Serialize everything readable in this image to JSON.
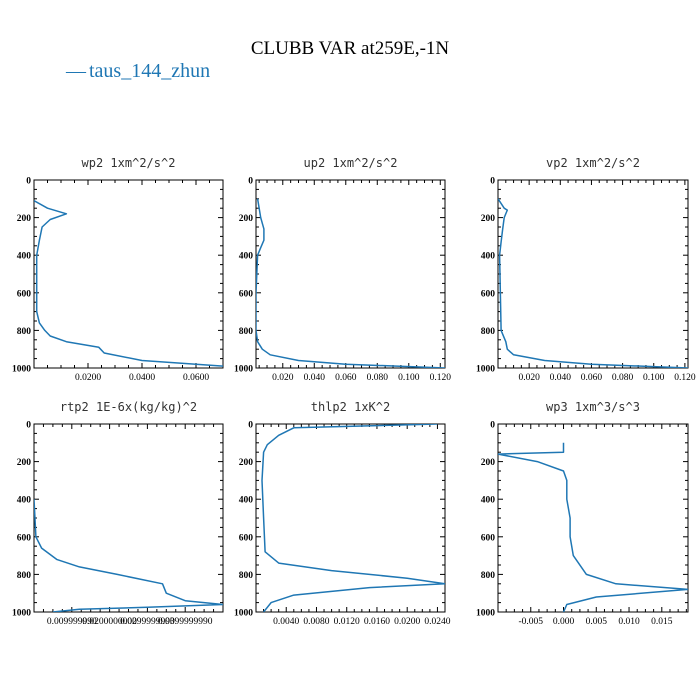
{
  "title": "CLUBB VAR at259E,-1N",
  "legend": {
    "label": "taus_144_zhun",
    "color": "#1f77b4",
    "marker": "—"
  },
  "chart_data": [
    {
      "type": "line",
      "title": "wp2  1xm^2/s^2",
      "xlim": [
        0,
        0.07
      ],
      "ylim": [
        1000,
        0
      ],
      "yticks": [
        0,
        200,
        400,
        600,
        800,
        1000
      ],
      "xticks": [
        0.02,
        0.04,
        0.06
      ],
      "xtick_labels": [
        "0.0200",
        "0.0400",
        "0.0600"
      ],
      "series": [
        {
          "x": [
            0.0,
            0.005,
            0.012,
            0.006,
            0.003,
            0.002,
            0.001,
            0.001,
            0.001,
            0.002,
            0.004,
            0.006,
            0.012,
            0.024,
            0.026,
            0.04,
            0.07
          ],
          "y": [
            110,
            150,
            180,
            210,
            250,
            320,
            400,
            600,
            700,
            760,
            800,
            830,
            860,
            890,
            920,
            960,
            990
          ]
        }
      ]
    },
    {
      "type": "line",
      "title": "up2  1xm^2/s^2",
      "xlim": [
        0.003,
        0.123
      ],
      "ylim": [
        1000,
        0
      ],
      "yticks": [
        0,
        200,
        400,
        600,
        800,
        1000
      ],
      "xticks": [
        0.02,
        0.04,
        0.06,
        0.08,
        0.1,
        0.12
      ],
      "xtick_labels": [
        "0.020",
        "0.040",
        "0.060",
        "0.080",
        "0.100",
        "0.120"
      ],
      "series": [
        {
          "x": [
            0.004,
            0.006,
            0.008,
            0.008,
            0.006,
            0.004,
            0.003,
            0.003,
            0.004,
            0.007,
            0.012,
            0.03,
            0.06,
            0.123
          ],
          "y": [
            100,
            200,
            260,
            320,
            360,
            400,
            600,
            800,
            860,
            900,
            930,
            960,
            980,
            1000
          ]
        }
      ]
    },
    {
      "type": "line",
      "title": "vp2  1xm^2/s^2",
      "xlim": [
        0.0,
        0.122
      ],
      "ylim": [
        1000,
        0
      ],
      "yticks": [
        0,
        200,
        400,
        600,
        800,
        1000
      ],
      "xticks": [
        0.02,
        0.04,
        0.06,
        0.08,
        0.1,
        0.12
      ],
      "xtick_labels": [
        "0.020",
        "0.040",
        "0.060",
        "0.080",
        "0.100",
        "0.120"
      ],
      "series": [
        {
          "x": [
            0.0,
            0.004,
            0.006,
            0.004,
            0.003,
            0.002,
            0.001,
            0.002,
            0.005,
            0.006,
            0.01,
            0.03,
            0.06,
            0.122
          ],
          "y": [
            100,
            150,
            160,
            200,
            260,
            330,
            400,
            800,
            860,
            900,
            930,
            960,
            980,
            1000
          ]
        }
      ]
    },
    {
      "type": "line",
      "title": "rtp2  1E-6x(kg/kg)^2",
      "xlim": [
        0.0,
        0.05
      ],
      "ylim": [
        1000,
        0
      ],
      "yticks": [
        0,
        200,
        400,
        600,
        800,
        1000
      ],
      "xticks": [
        0.01,
        0.02,
        0.03,
        0.04
      ],
      "xtick_labels": [
        "0.009999990",
        "0.0200000000",
        "0.0299999990",
        "0.0399999990"
      ],
      "series": [
        {
          "x": [
            0.0,
            0.0005,
            0.002,
            0.006,
            0.012,
            0.022,
            0.034,
            0.035,
            0.04,
            0.05,
            0.03,
            0.012,
            0.005
          ],
          "y": [
            400,
            600,
            660,
            720,
            760,
            800,
            850,
            900,
            940,
            960,
            975,
            985,
            1000
          ]
        }
      ]
    },
    {
      "type": "line",
      "title": "thlp2  1xK^2",
      "xlim": [
        0.0,
        0.025
      ],
      "ylim": [
        1000,
        0
      ],
      "yticks": [
        0,
        200,
        400,
        600,
        800,
        1000
      ],
      "xticks": [
        0.004,
        0.008,
        0.012,
        0.016,
        0.02,
        0.024
      ],
      "xtick_labels": [
        "0.0040",
        "0.0080",
        "0.0120",
        "0.0160",
        "0.0200",
        "0.0240"
      ],
      "series": [
        {
          "x": [
            0.024,
            0.005,
            0.003,
            0.0015,
            0.001,
            0.0008,
            0.001,
            0.0012,
            0.003,
            0.01,
            0.02,
            0.025,
            0.015,
            0.005,
            0.002,
            0.001
          ],
          "y": [
            0,
            20,
            60,
            110,
            150,
            300,
            500,
            680,
            740,
            780,
            820,
            850,
            870,
            910,
            950,
            1000
          ]
        }
      ]
    },
    {
      "type": "line",
      "title": "wp3  1xm^3/s^3",
      "xlim": [
        -0.01,
        0.019
      ],
      "ylim": [
        1000,
        0
      ],
      "yticks": [
        0,
        200,
        400,
        600,
        800,
        1000
      ],
      "xticks": [
        -0.005,
        0.0,
        0.005,
        0.01,
        0.015
      ],
      "xtick_labels": [
        "-0.005",
        "0.000",
        "0.005",
        "0.010",
        "0.015"
      ],
      "series": [
        {
          "x": [
            0.0,
            0.0,
            -0.01,
            -0.004,
            0.0,
            0.0005,
            0.0005,
            0.001,
            0.001,
            0.0015,
            0.0035,
            0.008,
            0.019,
            0.005,
            0.0005,
            0.0
          ],
          "y": [
            100,
            150,
            160,
            200,
            250,
            300,
            400,
            500,
            600,
            700,
            800,
            850,
            880,
            920,
            960,
            1000
          ]
        }
      ]
    }
  ]
}
